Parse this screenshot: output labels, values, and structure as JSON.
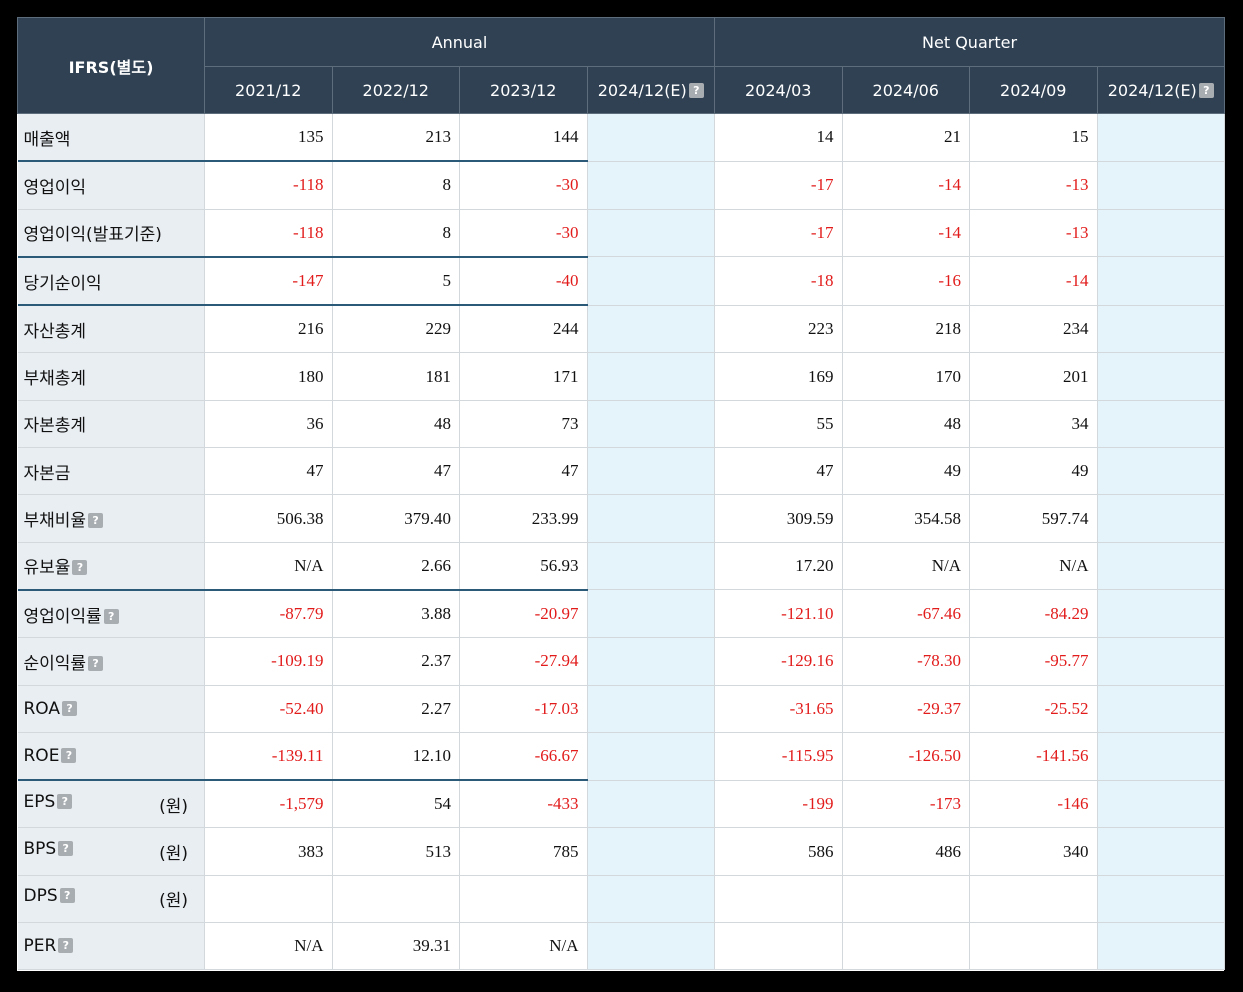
{
  "header": {
    "label": "IFRS(별도)",
    "group_annual": "Annual",
    "group_quarter": "Net Quarter",
    "periods": [
      "2021/12",
      "2022/12",
      "2023/12",
      "2024/12(E)",
      "2024/03",
      "2024/06",
      "2024/09",
      "2024/12(E)"
    ],
    "help_glyph": "?"
  },
  "rows": [
    {
      "label": "매출액",
      "help": false,
      "unit": "",
      "values": [
        "135",
        "213",
        "144",
        "",
        "14",
        "21",
        "15",
        ""
      ],
      "neg": [
        0,
        0,
        0,
        0,
        0,
        0,
        0,
        0
      ]
    },
    {
      "label": "영업이익",
      "help": false,
      "unit": "",
      "values": [
        "-118",
        "8",
        "-30",
        "",
        "-17",
        "-14",
        "-13",
        ""
      ],
      "neg": [
        1,
        0,
        1,
        0,
        1,
        1,
        1,
        0
      ]
    },
    {
      "label": "영업이익(발표기준)",
      "help": false,
      "unit": "",
      "values": [
        "-118",
        "8",
        "-30",
        "",
        "-17",
        "-14",
        "-13",
        ""
      ],
      "neg": [
        1,
        0,
        1,
        0,
        1,
        1,
        1,
        0
      ]
    },
    {
      "label": "당기순이익",
      "help": false,
      "unit": "",
      "values": [
        "-147",
        "5",
        "-40",
        "",
        "-18",
        "-16",
        "-14",
        ""
      ],
      "neg": [
        1,
        0,
        1,
        0,
        1,
        1,
        1,
        0
      ]
    },
    {
      "label": "자산총계",
      "help": false,
      "unit": "",
      "values": [
        "216",
        "229",
        "244",
        "",
        "223",
        "218",
        "234",
        ""
      ],
      "neg": [
        0,
        0,
        0,
        0,
        0,
        0,
        0,
        0
      ]
    },
    {
      "label": "부채총계",
      "help": false,
      "unit": "",
      "values": [
        "180",
        "181",
        "171",
        "",
        "169",
        "170",
        "201",
        ""
      ],
      "neg": [
        0,
        0,
        0,
        0,
        0,
        0,
        0,
        0
      ]
    },
    {
      "label": "자본총계",
      "help": false,
      "unit": "",
      "values": [
        "36",
        "48",
        "73",
        "",
        "55",
        "48",
        "34",
        ""
      ],
      "neg": [
        0,
        0,
        0,
        0,
        0,
        0,
        0,
        0
      ]
    },
    {
      "label": "자본금",
      "help": false,
      "unit": "",
      "values": [
        "47",
        "47",
        "47",
        "",
        "47",
        "49",
        "49",
        ""
      ],
      "neg": [
        0,
        0,
        0,
        0,
        0,
        0,
        0,
        0
      ]
    },
    {
      "label": "부채비율",
      "help": true,
      "unit": "",
      "values": [
        "506.38",
        "379.40",
        "233.99",
        "",
        "309.59",
        "354.58",
        "597.74",
        ""
      ],
      "neg": [
        0,
        0,
        0,
        0,
        0,
        0,
        0,
        0
      ]
    },
    {
      "label": "유보율",
      "help": true,
      "unit": "",
      "values": [
        "N/A",
        "2.66",
        "56.93",
        "",
        "17.20",
        "N/A",
        "N/A",
        ""
      ],
      "neg": [
        0,
        0,
        0,
        0,
        0,
        0,
        0,
        0
      ]
    },
    {
      "label": "영업이익률",
      "help": true,
      "unit": "",
      "values": [
        "-87.79",
        "3.88",
        "-20.97",
        "",
        "-121.10",
        "-67.46",
        "-84.29",
        ""
      ],
      "neg": [
        1,
        0,
        1,
        0,
        1,
        1,
        1,
        0
      ]
    },
    {
      "label": "순이익률",
      "help": true,
      "unit": "",
      "values": [
        "-109.19",
        "2.37",
        "-27.94",
        "",
        "-129.16",
        "-78.30",
        "-95.77",
        ""
      ],
      "neg": [
        1,
        0,
        1,
        0,
        1,
        1,
        1,
        0
      ]
    },
    {
      "label": "ROA",
      "help": true,
      "unit": "",
      "values": [
        "-52.40",
        "2.27",
        "-17.03",
        "",
        "-31.65",
        "-29.37",
        "-25.52",
        ""
      ],
      "neg": [
        1,
        0,
        1,
        0,
        1,
        1,
        1,
        0
      ]
    },
    {
      "label": "ROE",
      "help": true,
      "unit": "",
      "values": [
        "-139.11",
        "12.10",
        "-66.67",
        "",
        "-115.95",
        "-126.50",
        "-141.56",
        ""
      ],
      "neg": [
        1,
        0,
        1,
        0,
        1,
        1,
        1,
        0
      ]
    },
    {
      "label": "EPS",
      "help": true,
      "unit": "(원)",
      "values": [
        "-1,579",
        "54",
        "-433",
        "",
        "-199",
        "-173",
        "-146",
        ""
      ],
      "neg": [
        1,
        0,
        1,
        0,
        1,
        1,
        1,
        0
      ]
    },
    {
      "label": "BPS",
      "help": true,
      "unit": "(원)",
      "values": [
        "383",
        "513",
        "785",
        "",
        "586",
        "486",
        "340",
        ""
      ],
      "neg": [
        0,
        0,
        0,
        0,
        0,
        0,
        0,
        0
      ]
    },
    {
      "label": "DPS",
      "help": true,
      "unit": "(원)",
      "values": [
        "",
        "",
        "",
        "",
        "",
        "",
        "",
        ""
      ],
      "neg": [
        0,
        0,
        0,
        0,
        0,
        0,
        0,
        0
      ]
    },
    {
      "label": "PER",
      "help": true,
      "unit": "",
      "values": [
        "N/A",
        "39.31",
        "N/A",
        "",
        "",
        "",
        "",
        ""
      ],
      "neg": [
        0,
        0,
        0,
        0,
        0,
        0,
        0,
        0
      ]
    }
  ],
  "colors": {
    "header_bg": "#2f4153",
    "label_bg": "#e9eef3",
    "estimate_bg": "#e5f3fa",
    "negative": "#e21b1b",
    "separator": "#2a5a78"
  }
}
